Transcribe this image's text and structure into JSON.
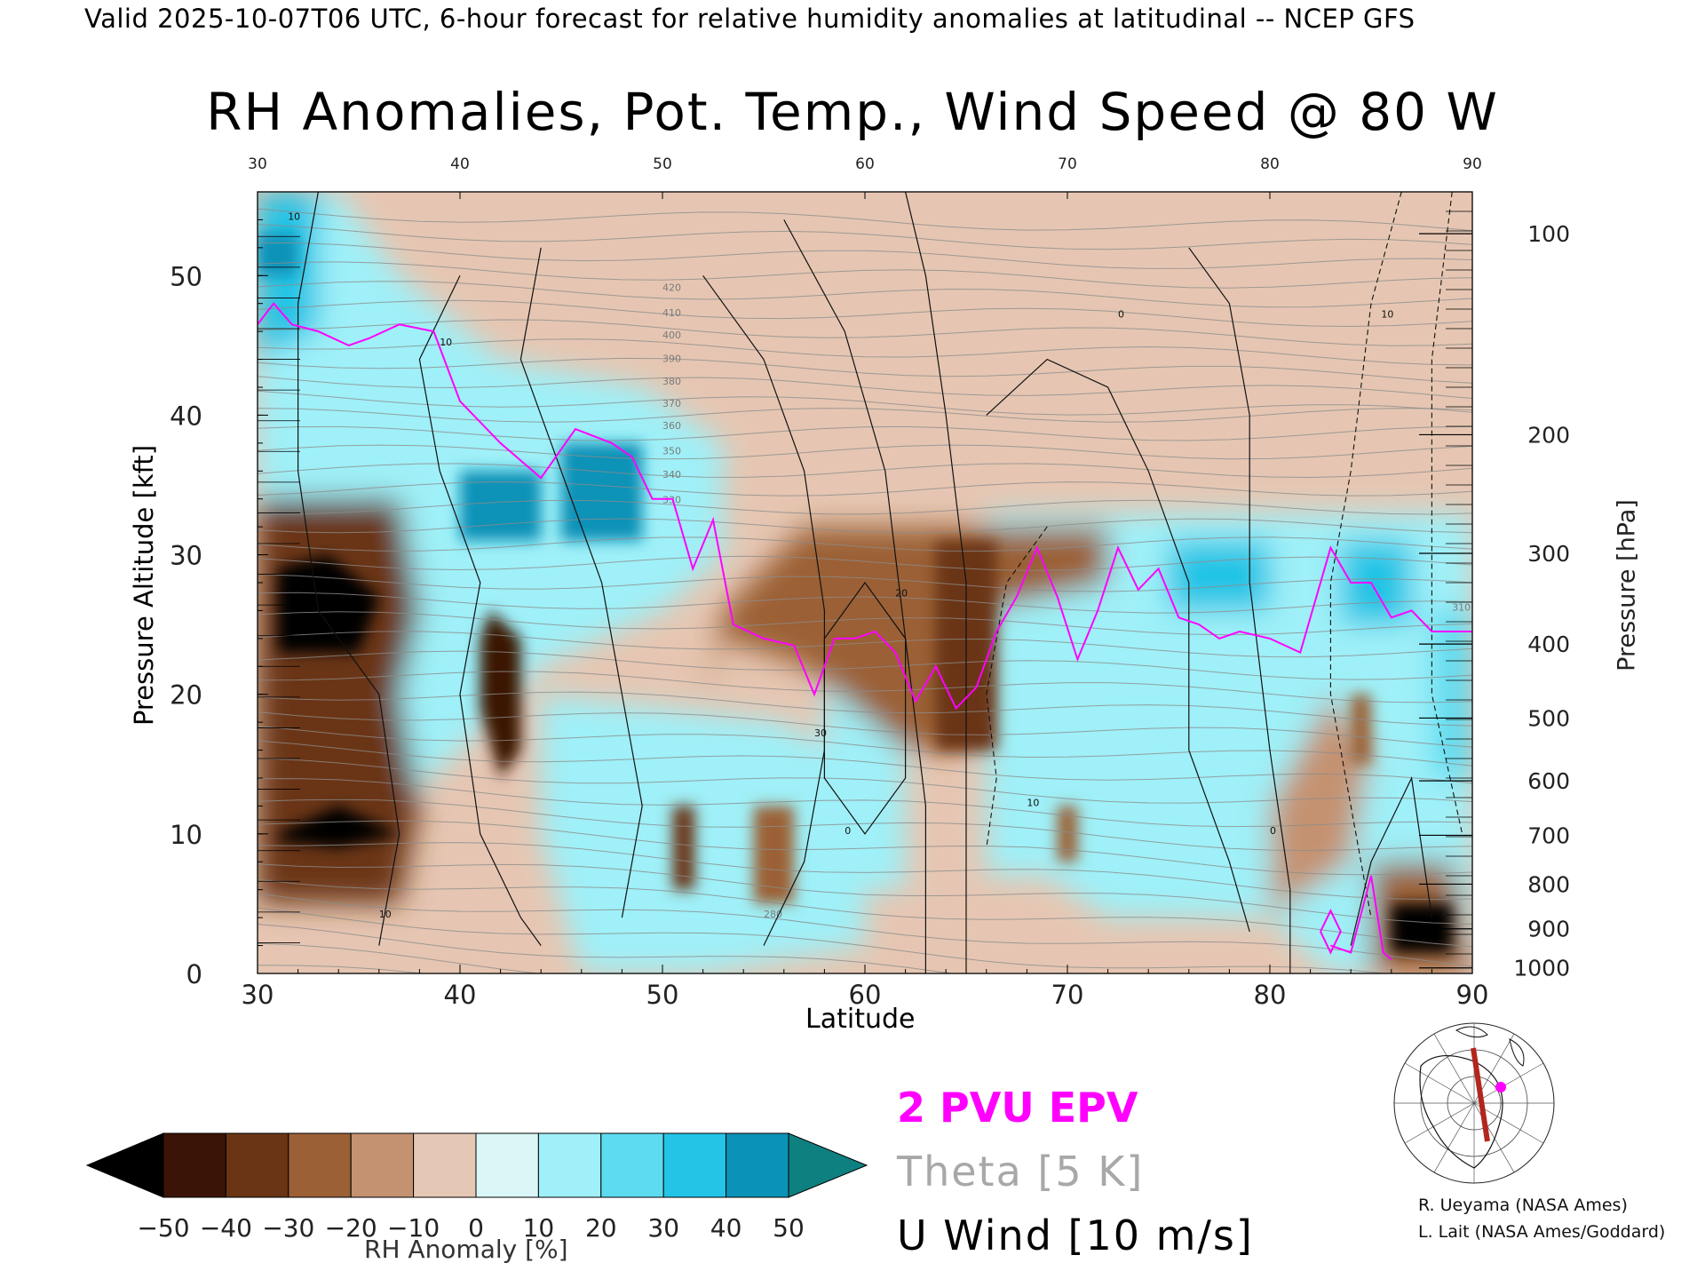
{
  "header": "Valid 2025-10-07T06 UTC, 6-hour forecast for relative humidity anomalies at latitudinal -- NCEP GFS",
  "chart_data": {
    "type": "heatmap",
    "title": "RH Anomalies, Pot. Temp., Wind Speed @ 80 W",
    "xlabel": "Latitude",
    "ylabel": "Pressure Altitude [kft]",
    "ylabel_right": "Pressure [hPa]",
    "xlim": [
      30,
      90
    ],
    "ylim": [
      0,
      56
    ],
    "x_ticks": [
      "30",
      "40",
      "50",
      "60",
      "70",
      "80",
      "90"
    ],
    "y_ticks": [
      "0",
      "10",
      "20",
      "30",
      "40",
      "50"
    ],
    "pressure_ticks": [
      {
        "label": "100",
        "kft": 53.0
      },
      {
        "label": "200",
        "kft": 38.6
      },
      {
        "label": "300",
        "kft": 30.1
      },
      {
        "label": "400",
        "kft": 23.6
      },
      {
        "label": "500",
        "kft": 18.3
      },
      {
        "label": "600",
        "kft": 13.8
      },
      {
        "label": "700",
        "kft": 9.9
      },
      {
        "label": "800",
        "kft": 6.4
      },
      {
        "label": "900",
        "kft": 3.2
      },
      {
        "label": "1000",
        "kft": 0.4
      }
    ],
    "theta_contour_labels": [
      "280",
      "310",
      "330",
      "340",
      "350",
      "360",
      "370",
      "380",
      "390",
      "400",
      "410",
      "420"
    ],
    "wind_contour_labels": [
      "0",
      "10",
      "20",
      "30"
    ],
    "rh_anomaly_regions": [
      {
        "lat": 33.5,
        "kft": 25,
        "value": -50
      },
      {
        "lat": 34,
        "kft": 10,
        "value": -50
      },
      {
        "lat": 42,
        "kft": 20,
        "value": -45
      },
      {
        "lat": 51,
        "kft": 10,
        "value": -40
      },
      {
        "lat": 64.5,
        "kft": 24,
        "value": -30
      },
      {
        "lat": 46,
        "kft": 35,
        "value": 45
      },
      {
        "lat": 41.5,
        "kft": 34,
        "value": 40
      },
      {
        "lat": 76.5,
        "kft": 28,
        "value": 30
      },
      {
        "lat": 85,
        "kft": 28,
        "value": 30
      },
      {
        "lat": 87,
        "kft": 4,
        "value": -40
      }
    ],
    "epv_2pvu": {
      "lat": [
        30,
        30.8,
        31.7,
        33,
        34.5,
        35.5,
        37,
        38.7,
        40,
        42,
        44,
        45.7,
        47.5,
        48.5,
        49.5,
        50.5,
        51.5,
        52.5,
        53.5,
        55,
        56.5,
        57.5,
        58.5,
        59.5,
        60.5,
        61.5,
        62.5,
        63.5,
        64.5,
        65.5,
        66.5,
        67.5,
        68.5,
        69.5,
        70.5,
        71.5,
        72.5,
        73.5,
        74.5,
        75.5,
        76.5,
        77.5,
        78.5,
        80,
        81.5,
        83,
        84,
        85,
        86,
        87,
        88,
        89,
        90
      ],
      "kft": [
        46.5,
        48,
        46.5,
        46,
        45,
        45.5,
        46.5,
        46,
        41,
        38,
        35.5,
        39,
        38,
        37,
        34,
        34,
        29,
        32.5,
        25,
        24,
        23.5,
        20,
        24,
        24,
        24.5,
        23,
        19.5,
        22,
        19,
        20.5,
        24.5,
        27,
        30.5,
        27,
        22.5,
        26,
        30.5,
        27.5,
        29,
        25.5,
        25,
        24,
        24.5,
        24,
        23,
        30.5,
        28,
        28,
        25.5,
        26,
        24.5,
        24.5,
        24.5
      ]
    },
    "colorbar": {
      "label": "RH Anomaly [%]",
      "ticks": [
        "−50",
        "−40",
        "−30",
        "−20",
        "−10",
        "0",
        "10",
        "20",
        "30",
        "40",
        "50"
      ],
      "colors": [
        "#000000",
        "#3a1406",
        "#6a3514",
        "#9b6036",
        "#c49271",
        "#e5c7b6",
        "#daf6f6",
        "#9ff0f8",
        "#5ddcf0",
        "#24c4e6",
        "#0b92b8",
        "#0f8080"
      ]
    }
  },
  "legend": {
    "epv": "2 PVU EPV",
    "theta": "Theta [5 K]",
    "wind": "U Wind [10 m/s]"
  },
  "credits": {
    "line1": "R. Ueyama (NASA Ames)",
    "line2": "L. Lait (NASA Ames/Goddard)"
  },
  "colors": {
    "epv": "#ff00ff",
    "theta": "#a8a8a8",
    "wind": "#000000"
  }
}
